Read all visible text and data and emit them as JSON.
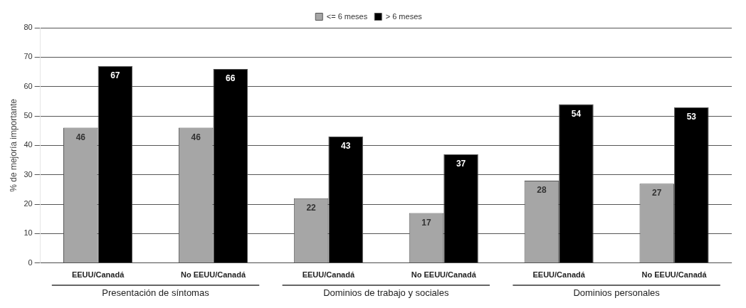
{
  "chart_data": {
    "type": "bar",
    "ylabel": "% de mejoría importante",
    "categories": [
      "EEUU/Canadá",
      "No EEUU/Canadá",
      "EEUU/Canadá",
      "No EEUU/Canadá",
      "EEUU/Canadá",
      "No EEUU/Canadá"
    ],
    "series": [
      {
        "name": "<= 6 meses",
        "color": "#a6a6a6",
        "values": [
          46,
          46,
          22,
          17,
          28,
          27
        ]
      },
      {
        "name": "> 6 meses",
        "color": "#000000",
        "values": [
          67,
          66,
          43,
          37,
          54,
          53
        ]
      }
    ],
    "ylim": [
      0,
      80
    ],
    "yticks": [
      0,
      10,
      20,
      30,
      40,
      50,
      60,
      70,
      80
    ],
    "grid": "y",
    "legend": "top",
    "data_labels": true,
    "annotations": [
      "Presentación de síntomas",
      "Dominios de trabajo y sociales",
      "Dominios personales"
    ]
  }
}
